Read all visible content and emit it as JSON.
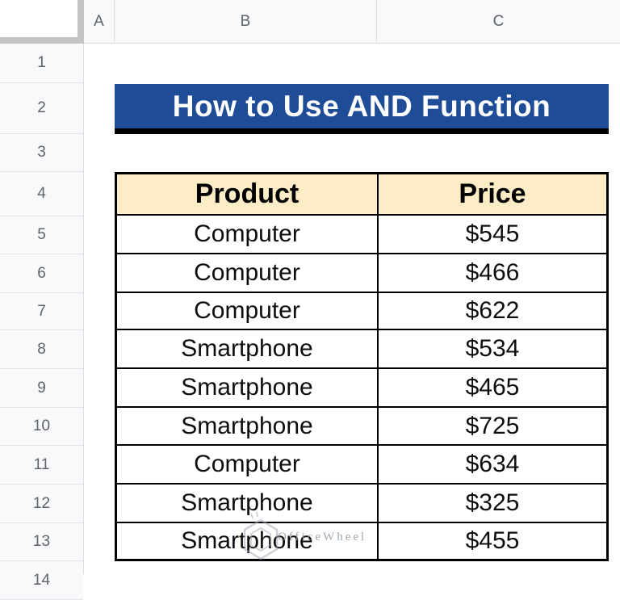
{
  "spreadsheet": {
    "column_headers": [
      "A",
      "B",
      "C"
    ],
    "row_headers": [
      "1",
      "2",
      "3",
      "4",
      "5",
      "6",
      "7",
      "8",
      "9",
      "10",
      "11",
      "12",
      "13",
      "14"
    ]
  },
  "banner": {
    "title": "How to Use AND Function",
    "bg_color": "#1E4C96",
    "text_color": "#FFFFFF",
    "underline_color": "#000000"
  },
  "table": {
    "columns": [
      "Product",
      "Price"
    ],
    "header_bg": "#FCEDC7",
    "border_color": "#000000",
    "rows": [
      {
        "product": "Computer",
        "price": "$545"
      },
      {
        "product": "Computer",
        "price": "$466"
      },
      {
        "product": "Computer",
        "price": "$622"
      },
      {
        "product": "Smartphone",
        "price": "$534"
      },
      {
        "product": "Smartphone",
        "price": "$465"
      },
      {
        "product": "Smartphone",
        "price": "$725"
      },
      {
        "product": "Computer",
        "price": "$634"
      },
      {
        "product": "Smartphone",
        "price": "$325"
      },
      {
        "product": "Smartphone",
        "price": "$455"
      }
    ]
  },
  "watermark": {
    "text": "OfficeWheel",
    "logo": "hexagon-icon",
    "color": "#8D99A4"
  },
  "theme": {
    "header_bg": "#F8F9FA",
    "header_text": "#5F6368",
    "header_border": "#DADCE0",
    "corner_strip": "#C2C4C6",
    "canvas_bg": "#FFFFFF"
  }
}
